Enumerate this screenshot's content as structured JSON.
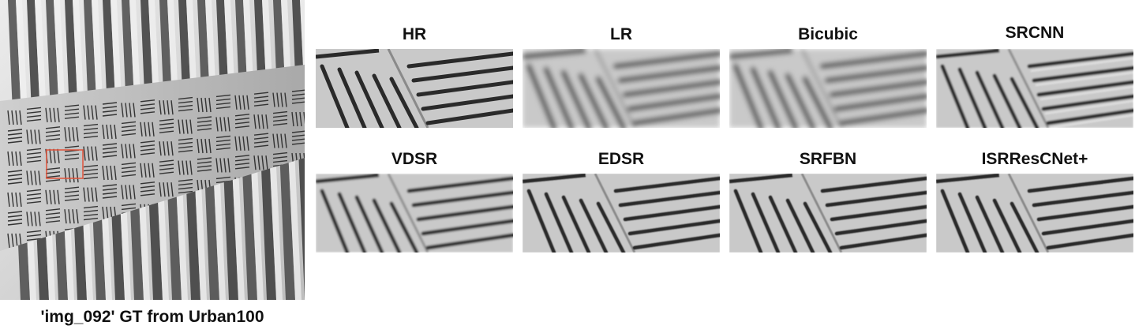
{
  "figure": {
    "caption": "'img_092' GT from Urban100",
    "panels": [
      {
        "label": "HR",
        "quality": "sharp"
      },
      {
        "label": "LR",
        "quality": "blurry"
      },
      {
        "label": "Bicubic",
        "quality": "blurry"
      },
      {
        "label": "SRCNN",
        "quality": "artifacts"
      },
      {
        "label": "VDSR",
        "quality": "soft"
      },
      {
        "label": "EDSR",
        "quality": "clean"
      },
      {
        "label": "SRFBN",
        "quality": "clean"
      },
      {
        "label": "ISRResCNet+",
        "quality": "clean"
      }
    ],
    "colors": {
      "roi_box": "#e0533a",
      "panel_background": "#c9c9c9",
      "groove": "#2a2a2a"
    }
  }
}
